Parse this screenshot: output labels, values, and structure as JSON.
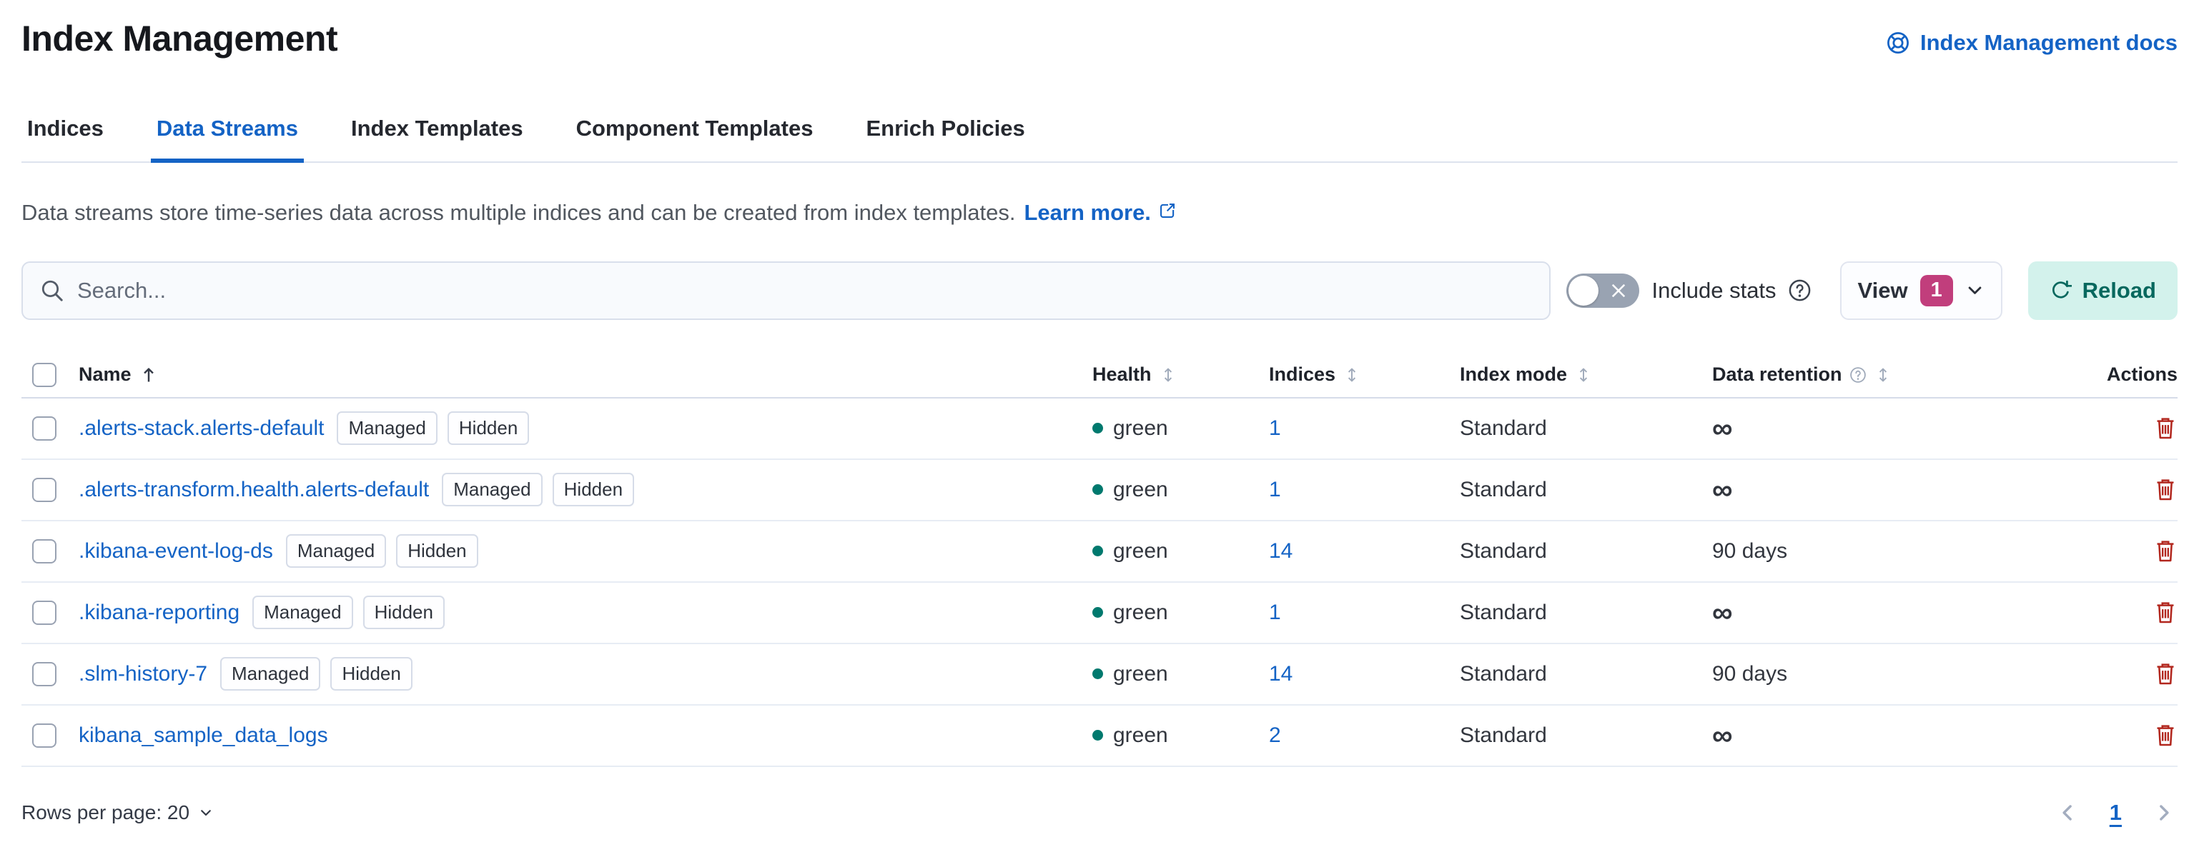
{
  "page": {
    "title": "Index Management"
  },
  "header": {
    "docs_link": "Index Management docs"
  },
  "tabs": [
    {
      "label": "Indices",
      "active": false
    },
    {
      "label": "Data Streams",
      "active": true
    },
    {
      "label": "Index Templates",
      "active": false
    },
    {
      "label": "Component Templates",
      "active": false
    },
    {
      "label": "Enrich Policies",
      "active": false
    }
  ],
  "description": {
    "text": "Data streams store time-series data across multiple indices and can be created from index templates.",
    "link": "Learn more."
  },
  "toolbar": {
    "search_placeholder": "Search...",
    "search_value": "",
    "include_stats_label": "Include stats",
    "include_stats_on": false,
    "view_label": "View",
    "view_count": "1",
    "reload_label": "Reload"
  },
  "table": {
    "columns": {
      "name": "Name",
      "health": "Health",
      "indices": "Indices",
      "index_mode": "Index mode",
      "data_retention": "Data retention",
      "actions": "Actions"
    },
    "sort": {
      "column": "Name",
      "direction": "ascending"
    },
    "rows": [
      {
        "name": ".alerts-stack.alerts-default",
        "badges": [
          "Managed",
          "Hidden"
        ],
        "health": "green",
        "indices": "1",
        "index_mode": "Standard",
        "retention": "∞"
      },
      {
        "name": ".alerts-transform.health.alerts-default",
        "badges": [
          "Managed",
          "Hidden"
        ],
        "health": "green",
        "indices": "1",
        "index_mode": "Standard",
        "retention": "∞"
      },
      {
        "name": ".kibana-event-log-ds",
        "badges": [
          "Managed",
          "Hidden"
        ],
        "health": "green",
        "indices": "14",
        "index_mode": "Standard",
        "retention": "90 days"
      },
      {
        "name": ".kibana-reporting",
        "badges": [
          "Managed",
          "Hidden"
        ],
        "health": "green",
        "indices": "1",
        "index_mode": "Standard",
        "retention": "∞"
      },
      {
        "name": ".slm-history-7",
        "badges": [
          "Managed",
          "Hidden"
        ],
        "health": "green",
        "indices": "14",
        "index_mode": "Standard",
        "retention": "90 days"
      },
      {
        "name": "kibana_sample_data_logs",
        "badges": [],
        "health": "green",
        "indices": "2",
        "index_mode": "Standard",
        "retention": "∞"
      }
    ]
  },
  "footer": {
    "rows_per_page": "Rows per page: 20",
    "page_number": "1"
  },
  "colors": {
    "primary": "#1463c5",
    "accent": "#c13e7c",
    "danger": "#b2271e",
    "health_green": "#00796e",
    "reload_bg": "#d3f2ec",
    "reload_fg": "#07685e"
  }
}
